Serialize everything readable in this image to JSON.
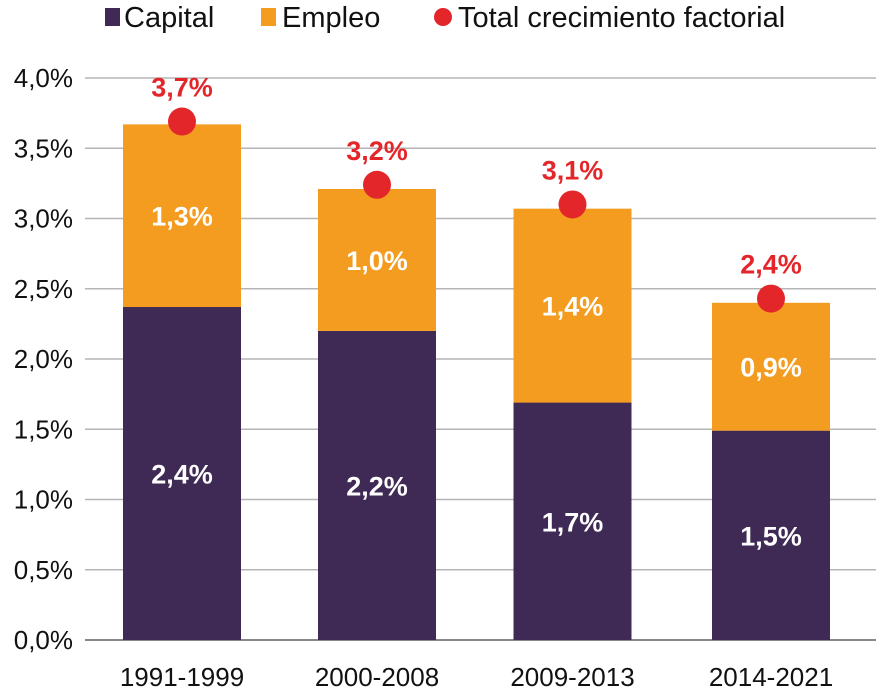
{
  "chart_data": {
    "type": "bar",
    "stacked": true,
    "title": "",
    "xlabel": "",
    "ylabel": "",
    "ylim": [
      0,
      4.0
    ],
    "yticks": [
      "0,0%",
      "0,5%",
      "1,0%",
      "1,5%",
      "2,0%",
      "2,5%",
      "3,0%",
      "3,5%",
      "4,0%"
    ],
    "grid": true,
    "legend_position": "top",
    "categories": [
      "1991-1999",
      "2000-2008",
      "2009-2013",
      "2014-2021"
    ],
    "series": [
      {
        "name": "Capital",
        "color": "#3f2a56",
        "values": [
          2.37,
          2.2,
          1.69,
          1.49
        ],
        "labels": [
          "2,4%",
          "2,2%",
          "1,7%",
          "1,5%"
        ]
      },
      {
        "name": "Empleo",
        "color": "#f39c1f",
        "values": [
          1.3,
          1.01,
          1.38,
          0.91
        ],
        "labels": [
          "1,3%",
          "1,0%",
          "1,4%",
          "0,9%"
        ]
      }
    ],
    "total": {
      "name": "Total crecimiento factorial",
      "color": "#e3262a",
      "values": [
        3.69,
        3.24,
        3.1,
        2.43
      ],
      "labels": [
        "3,7%",
        "3,2%",
        "3,1%",
        "2,4%"
      ]
    }
  }
}
